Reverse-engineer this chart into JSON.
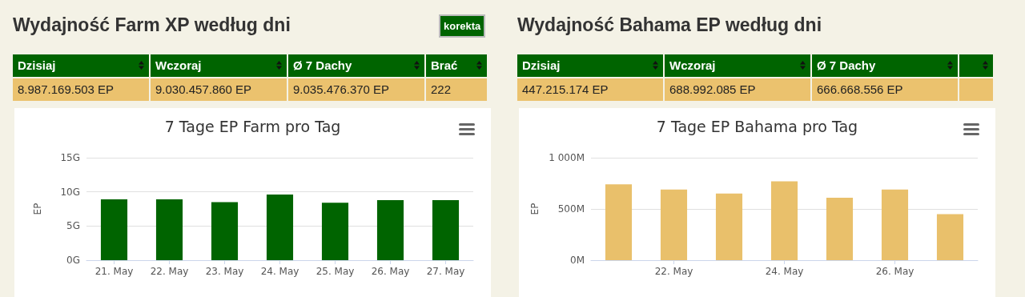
{
  "chart_data": [
    {
      "type": "other",
      "title": "Wydajność Farm XP według dni",
      "subtitle": "korekta",
      "annotations": [
        "Dzisiaj",
        "Wczoraj",
        "Ø 7 Dachy",
        "Brać",
        "8.987.169.503 EP",
        "9.030.457.860 EP",
        "9.035.476.370 EP",
        "222"
      ]
    },
    {
      "type": "bar",
      "title": "7 Tage EP Farm pro Tag",
      "ylabel": "EP",
      "categories": [
        "21. May",
        "22. May",
        "23. May",
        "24. May",
        "25. May",
        "26. May",
        "27. May"
      ],
      "values": [
        8.9,
        8.9,
        8.5,
        9.6,
        8.4,
        8.8,
        8.8
      ],
      "color": "#006400",
      "ylim": [
        0,
        15
      ],
      "yticks": [
        {
          "value": 0,
          "label": "0G"
        },
        {
          "value": 5,
          "label": "5G"
        },
        {
          "value": 10,
          "label": "10G"
        },
        {
          "value": 15,
          "label": "15G"
        }
      ],
      "grid": "y"
    },
    {
      "type": "other",
      "title": "Wydajność Bahama EP według dni",
      "annotations": [
        "Dzisiaj",
        "Wczoraj",
        "Ø 7 Dachy",
        null,
        "447.215.174 EP",
        "688.992.085 EP",
        "666.668.556 EP",
        null
      ]
    },
    {
      "type": "bar",
      "title": "7 Tage EP Bahama pro Tag",
      "ylabel": "EP",
      "categories": [
        null,
        "22. May",
        null,
        "24. May",
        null,
        "26. May",
        null
      ],
      "values": [
        740,
        690,
        650,
        770,
        610,
        690,
        450
      ],
      "color": "#e9c06b",
      "ylim": [
        0,
        1000
      ],
      "yticks": [
        {
          "value": 0,
          "label": "0M"
        },
        {
          "value": 500,
          "label": "500M"
        },
        {
          "value": 1000,
          "label": "1 000M"
        }
      ],
      "grid": "y"
    }
  ]
}
